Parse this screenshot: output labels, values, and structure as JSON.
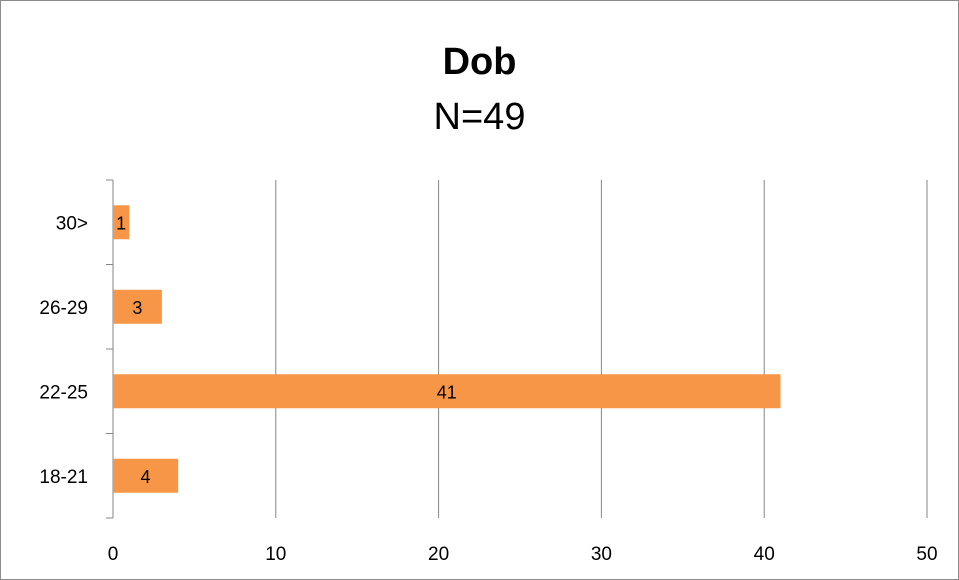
{
  "chart_data": {
    "type": "bar",
    "orientation": "horizontal",
    "title": "Dob",
    "subtitle": "N=49",
    "categories": [
      "18-21",
      "22-25",
      "26-29",
      "30>"
    ],
    "values": [
      4,
      41,
      3,
      1
    ],
    "data_labels": [
      "4",
      "41",
      "3",
      "1"
    ],
    "xlim": [
      0,
      50
    ],
    "x_ticks": [
      0,
      10,
      20,
      30,
      40,
      50
    ],
    "x_tick_labels": [
      "0",
      "10",
      "20",
      "30",
      "40",
      "50"
    ],
    "grid": "vertical",
    "legend": "none",
    "colors": {
      "bar": "#f79646",
      "grid": "#868686",
      "frame": "#8c8c8c"
    }
  }
}
